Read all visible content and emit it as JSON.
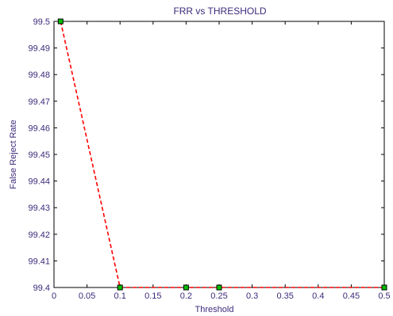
{
  "chart_data": {
    "type": "line",
    "title": "FRR vs THRESHOLD",
    "xlabel": "Threshold",
    "ylabel": "False Reject Rate",
    "xlim": [
      0,
      0.5
    ],
    "ylim": [
      99.4,
      99.5
    ],
    "grid": false,
    "legend": "none",
    "x_ticks": [
      "0",
      "0.05",
      "0.1",
      "0.15",
      "0.2",
      "0.25",
      "0.3",
      "0.35",
      "0.4",
      "0.45",
      "0.5"
    ],
    "y_ticks": [
      "99.4",
      "99.41",
      "99.42",
      "99.43",
      "99.44",
      "99.45",
      "99.46",
      "99.47",
      "99.48",
      "99.49",
      "99.5"
    ],
    "series": [
      {
        "x": [
          0.01,
          0.1,
          0.2,
          0.25,
          0.5
        ],
        "y": [
          99.5,
          99.4,
          99.4,
          99.4,
          99.4
        ],
        "line_color": "#ff0000",
        "line_style": "dashed",
        "marker": "square",
        "marker_face": "#00c000",
        "marker_edge": "#000000"
      }
    ]
  },
  "colors": {
    "text": "#3c2a7a",
    "axes": "#000000",
    "background": "#ffffff"
  }
}
